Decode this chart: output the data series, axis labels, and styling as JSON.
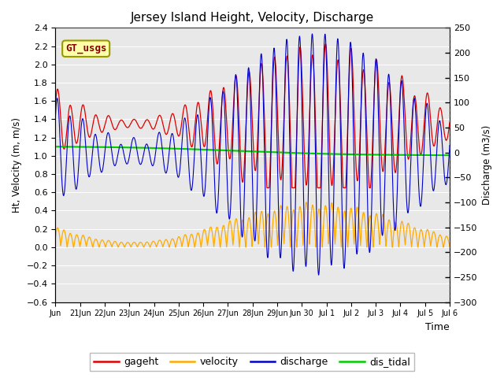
{
  "title": "Jersey Island Height, Velocity, Discharge",
  "xlabel": "Time",
  "ylabel_left": "Ht, Velocity (m, m/s)",
  "ylabel_right": "Discharge (m3/s)",
  "ylim_left": [
    -0.6,
    2.4
  ],
  "ylim_right": [
    -300,
    250
  ],
  "yticks_left": [
    -0.6,
    -0.4,
    -0.2,
    0.0,
    0.2,
    0.4,
    0.6,
    0.8,
    1.0,
    1.2,
    1.4,
    1.6,
    1.8,
    2.0,
    2.2,
    2.4
  ],
  "yticks_right": [
    -300,
    -250,
    -200,
    -150,
    -100,
    -50,
    0,
    50,
    100,
    150,
    200,
    250
  ],
  "fig_bg": "#ffffff",
  "plot_bg": "#e8e8e8",
  "legend_items": [
    "gageht",
    "velocity",
    "discharge",
    "dis_tidal"
  ],
  "legend_colors": [
    "#dd0000",
    "#ffaa00",
    "#0000cc",
    "#00cc00"
  ],
  "xtick_labels": [
    "Jun",
    "21Jun",
    "22Jun",
    "23Jun",
    "24Jun",
    "25Jun",
    "26Jun",
    "27Jun",
    "28Jun",
    "29Jun",
    "Jun 30",
    "Jul 1",
    "Jul 2",
    "Jul 3",
    "Jul 4",
    "Jul 5",
    "Jul 6"
  ],
  "xtick_positions": [
    0,
    24,
    48,
    72,
    96,
    120,
    144,
    168,
    192,
    216,
    240,
    264,
    288,
    312,
    336,
    360,
    384
  ],
  "gt_usgs_label": "GT_usgs",
  "gt_usgs_bg": "#ffffaa",
  "gt_usgs_fg": "#880000",
  "gt_usgs_border": "#999900",
  "tidal_period_hours": 12.42,
  "t_start": 0,
  "t_end": 384,
  "dt": 0.1
}
